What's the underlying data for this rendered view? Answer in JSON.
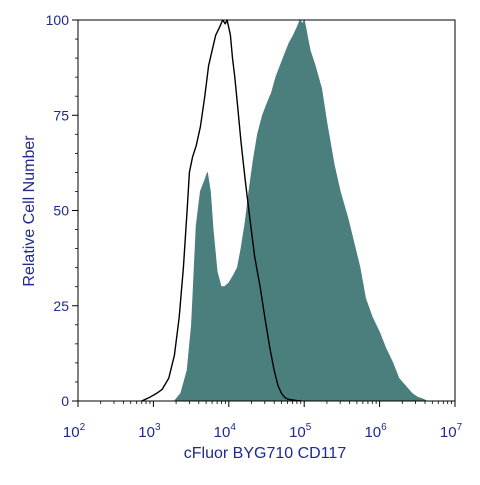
{
  "chart_data": {
    "type": "area",
    "title": "",
    "xlabel": "cFluor BYG710 CD117",
    "ylabel": "Relative Cell Number",
    "x_scale": "log",
    "xlim": [
      100,
      10000000
    ],
    "ylim": [
      0,
      100
    ],
    "x_ticks": [
      {
        "base": "10",
        "exp": "2",
        "value": 100
      },
      {
        "base": "10",
        "exp": "3",
        "value": 1000
      },
      {
        "base": "10",
        "exp": "4",
        "value": 10000
      },
      {
        "base": "10",
        "exp": "5",
        "value": 100000
      },
      {
        "base": "10",
        "exp": "6",
        "value": 1000000
      },
      {
        "base": "10",
        "exp": "7",
        "value": 10000000
      }
    ],
    "y_ticks": [
      "0",
      "25",
      "50",
      "75",
      "100"
    ],
    "grid": false,
    "legend": "none",
    "colors": {
      "stained_fill": "#4a7f7e",
      "control_line": "#000000",
      "axis_text": "#1f2a8c",
      "axis_line": "#000000"
    },
    "series": [
      {
        "style": "filled",
        "x": [
          1900,
          2300,
          2800,
          3200,
          3700,
          4200,
          4800,
          5200,
          5700,
          6200,
          7000,
          7900,
          8800,
          10000,
          11500,
          13000,
          14500,
          16500,
          18500,
          21000,
          24000,
          28000,
          32000,
          37000,
          42000,
          48000,
          55000,
          63000,
          72000,
          80000,
          88000,
          95000,
          100000,
          105000,
          112000,
          120000,
          140000,
          170000,
          200000,
          250000,
          300000,
          380000,
          450000,
          550000,
          650000,
          800000,
          1000000,
          1200000,
          1500000,
          1800000,
          2200000,
          2700000,
          3200000,
          3800000,
          4200000
        ],
        "y": [
          0,
          2,
          8,
          20,
          46,
          55,
          58,
          60,
          55,
          45,
          34,
          30,
          30,
          31,
          33,
          35,
          40,
          47,
          55,
          63,
          70,
          75,
          78,
          81,
          85,
          88,
          91,
          94,
          96,
          98,
          100,
          99,
          100,
          98,
          95,
          92,
          88,
          82,
          73,
          62,
          55,
          48,
          42,
          35,
          27,
          22,
          18,
          14,
          10,
          6,
          4,
          2,
          1,
          0.5,
          0
        ]
      },
      {
        "style": "outline",
        "x": [
          700,
          900,
          1100,
          1300,
          1600,
          1900,
          2200,
          2500,
          2800,
          3000,
          3300,
          3700,
          4200,
          4800,
          5400,
          6000,
          6700,
          7500,
          8300,
          9000,
          9500,
          10000,
          10500,
          11200,
          12000,
          13000,
          14500,
          16500,
          19000,
          22000,
          26000,
          30000,
          35000,
          40000,
          45000,
          50000,
          55000,
          60000,
          70000,
          80000,
          90000
        ],
        "y": [
          0,
          1,
          2,
          3,
          6,
          12,
          22,
          35,
          50,
          60,
          64,
          67,
          72,
          80,
          88,
          92,
          96,
          98,
          100,
          99,
          100,
          98,
          96,
          90,
          85,
          78,
          68,
          58,
          48,
          38,
          30,
          22,
          14,
          8,
          4,
          2,
          1,
          0.5,
          0.3,
          0.1,
          0
        ]
      }
    ]
  }
}
